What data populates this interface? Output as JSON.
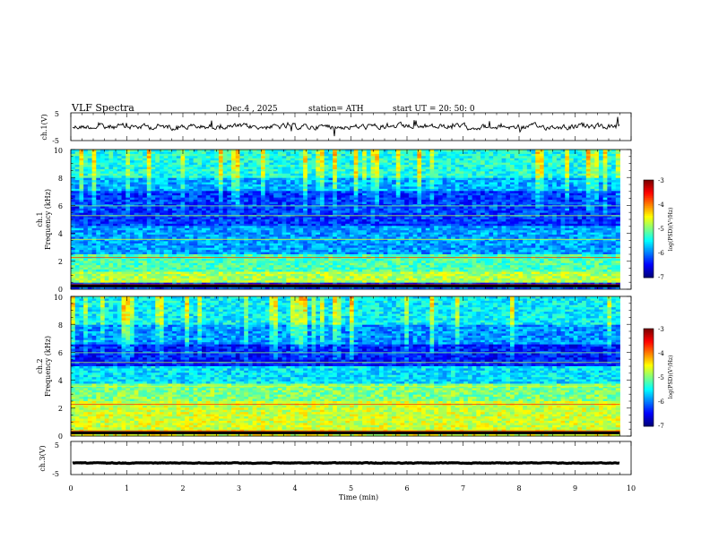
{
  "chart_data": {
    "type": "heatmap",
    "header": {
      "title": "VLF  Spectra",
      "date": "Dec.4  , 2025",
      "station": "station= ATH",
      "start_ut": "start  UT  =   20: 50: 0"
    },
    "x_axis": {
      "label": "Time  (min)",
      "range": [
        0,
        10
      ],
      "ticks": [
        "0",
        "1",
        "2",
        "3",
        "4",
        "5",
        "6",
        "7",
        "8",
        "9",
        "10"
      ],
      "data_end_min": 9.8
    },
    "panels": [
      {
        "id": "ch1-waveform",
        "kind": "waveform",
        "ylabel": "ch.1(V)",
        "yticks": [
          "5",
          "-5"
        ],
        "ylim": [
          -5,
          5
        ],
        "mean_level": 0
      },
      {
        "id": "ch1-spectrogram",
        "kind": "spectrogram",
        "ylabel_line1": "ch.1",
        "ylabel_line2": "Frequency  (kHz)",
        "yticks": [
          "0",
          "2",
          "4",
          "6",
          "8",
          "10"
        ],
        "ylim_khz": [
          0,
          10
        ],
        "colorbar": {
          "label": "log(PSD)(V²/Hz)",
          "ticks": [
            "-3",
            "-4",
            "-5",
            "-6",
            "-7"
          ],
          "range": [
            -7,
            -3
          ]
        }
      },
      {
        "id": "ch2-spectrogram",
        "kind": "spectrogram",
        "ylabel_line1": "ch.2",
        "ylabel_line2": "Frequency  (kHz)",
        "yticks": [
          "0",
          "2",
          "4",
          "6",
          "8",
          "10"
        ],
        "ylim_khz": [
          0,
          10
        ],
        "colorbar": {
          "label": "log(PSD)(V²/Hz)",
          "ticks": [
            "-3",
            "-4",
            "-5",
            "-6",
            "-7"
          ],
          "range": [
            -7,
            -3
          ]
        }
      },
      {
        "id": "ch3-waveform",
        "kind": "waveform",
        "ylabel": "ch.3(V)",
        "yticks": [
          "5",
          "-5"
        ],
        "ylim": [
          -5,
          5
        ],
        "mean_level": -1.5
      }
    ]
  }
}
